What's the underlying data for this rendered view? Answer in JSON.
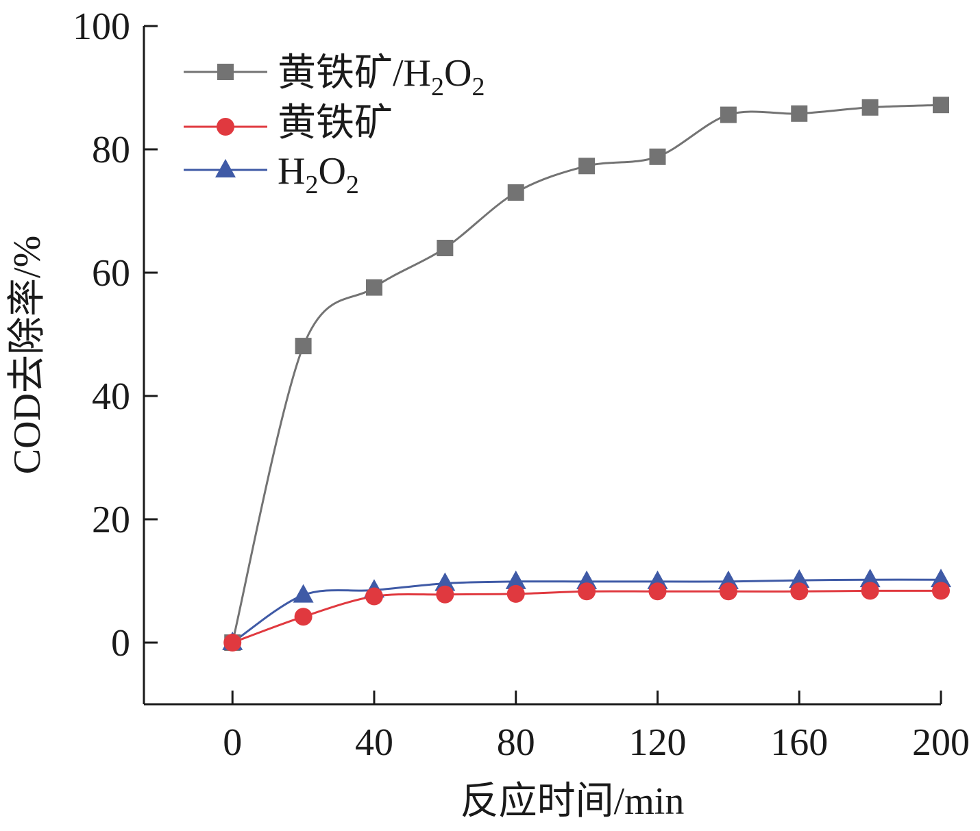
{
  "chart_data": {
    "type": "line",
    "xlabel": "反应时间/min",
    "ylabel": "COD去除率/%",
    "xlim": [
      -25,
      200
    ],
    "ylim": [
      -10,
      100
    ],
    "x_ticks": [
      0,
      40,
      80,
      120,
      160,
      200
    ],
    "y_ticks": [
      0,
      20,
      40,
      60,
      80,
      100
    ],
    "x_tick_labels": [
      "0",
      "40",
      "80",
      "120",
      "160",
      "200"
    ],
    "y_tick_labels": [
      "0",
      "20",
      "40",
      "60",
      "80",
      "100"
    ],
    "x": [
      0,
      20,
      40,
      60,
      80,
      100,
      120,
      140,
      160,
      180,
      200
    ],
    "grid": false,
    "legend_position": "top-left",
    "series": [
      {
        "name": "黄铁矿/H2O2",
        "legend_main": "黄铁矿/H",
        "legend_sub1": "2",
        "legend_mid": "O",
        "legend_sub2": "2",
        "marker": "square",
        "color": "#737373",
        "values": [
          0,
          48.1,
          57.6,
          64.0,
          73.0,
          77.3,
          78.8,
          85.6,
          85.8,
          86.8,
          87.2
        ]
      },
      {
        "name": "黄铁矿",
        "legend_main": "黄铁矿",
        "marker": "circle",
        "color": "#e0393f",
        "values": [
          0,
          4.2,
          7.5,
          7.8,
          7.9,
          8.3,
          8.3,
          8.3,
          8.3,
          8.4,
          8.4
        ]
      },
      {
        "name": "H2O2",
        "legend_main": "H",
        "legend_sub1": "2",
        "legend_mid": "O",
        "legend_sub2": "2",
        "marker": "triangle",
        "color": "#3f5aa6",
        "values": [
          0,
          7.7,
          8.5,
          9.6,
          9.9,
          9.9,
          9.9,
          9.9,
          10.1,
          10.2,
          10.2
        ]
      }
    ]
  }
}
